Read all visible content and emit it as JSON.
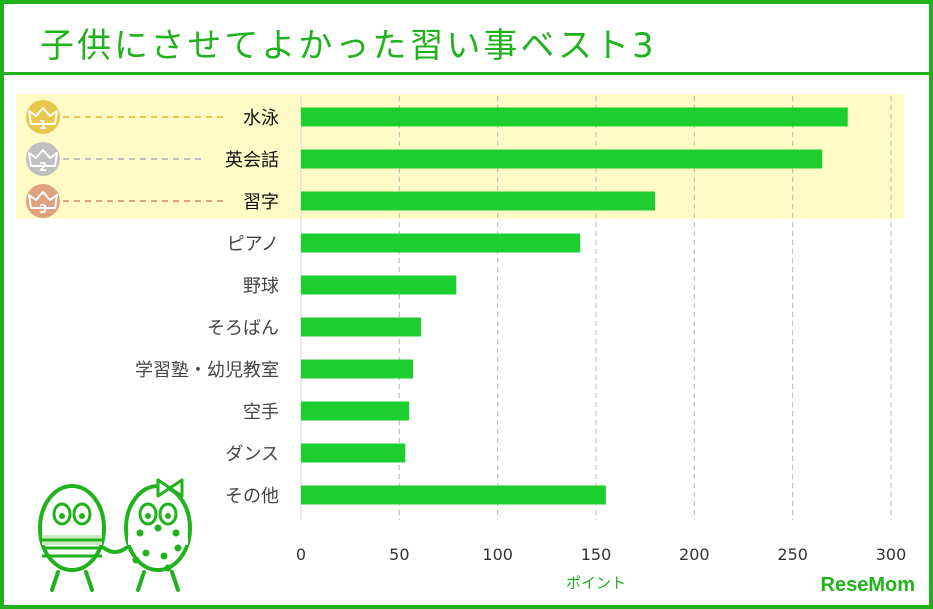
{
  "header": {
    "title": "子供にさせてよかった習い事ベスト3"
  },
  "brand": {
    "name": "ReseMom"
  },
  "colors": {
    "accent": "#20b21c",
    "bar": "#1ccf2e",
    "highlight": "#fffbc6",
    "medal_gold": "#e8c84a",
    "medal_silver": "#c0c0c0",
    "medal_bronze": "#e0a27e"
  },
  "chart_data": {
    "type": "bar",
    "orientation": "horizontal",
    "categories": [
      "水泳",
      "英会話",
      "習字",
      "ピアノ",
      "野球",
      "そろばん",
      "学習塾・幼児教室",
      "空手",
      "ダンス",
      "その他"
    ],
    "values": [
      278,
      265,
      180,
      142,
      79,
      61,
      57,
      55,
      53,
      155
    ],
    "xlabel": "ポイント",
    "ylabel": "",
    "xlim": [
      0,
      300
    ],
    "xticks": [
      0,
      50,
      100,
      150,
      200,
      250,
      300
    ],
    "grid": "vertical dashed",
    "top_ranked": [
      {
        "rank": "1",
        "icon": "gold-crown-medal-icon"
      },
      {
        "rank": "2",
        "icon": "silver-crown-medal-icon"
      },
      {
        "rank": "3",
        "icon": "bronze-crown-medal-icon"
      }
    ]
  }
}
